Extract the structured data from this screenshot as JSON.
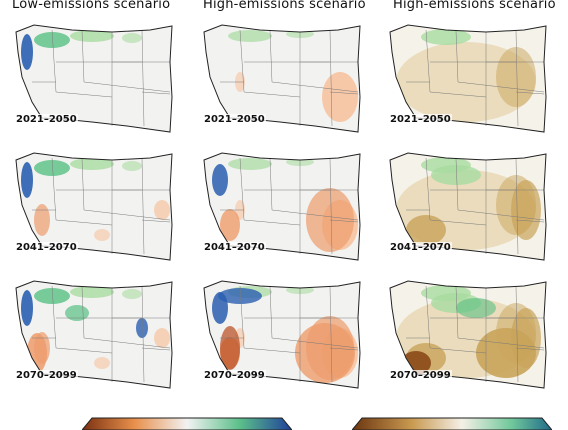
{
  "headers": [
    "Low-emissions scenario",
    "High-emissions scenario",
    "High-emissions scenario"
  ],
  "periods": [
    "2021–2050",
    "2041–2070",
    "2070–2099"
  ],
  "colors": {
    "background": "#ffffff",
    "map_fill": "#f2f2f1",
    "wet_light": "#a8dca0",
    "wet_mid": "#58c083",
    "wet_dark": "#2a5fb0",
    "dry_light": "#f6c3a0",
    "dry_mid": "#ee9c6c",
    "dry_dark": "#b84a1c",
    "brown_light": "#e6d3a8",
    "brown_mid": "#c9a45a",
    "brown_dark": "#8a4a18"
  }
}
